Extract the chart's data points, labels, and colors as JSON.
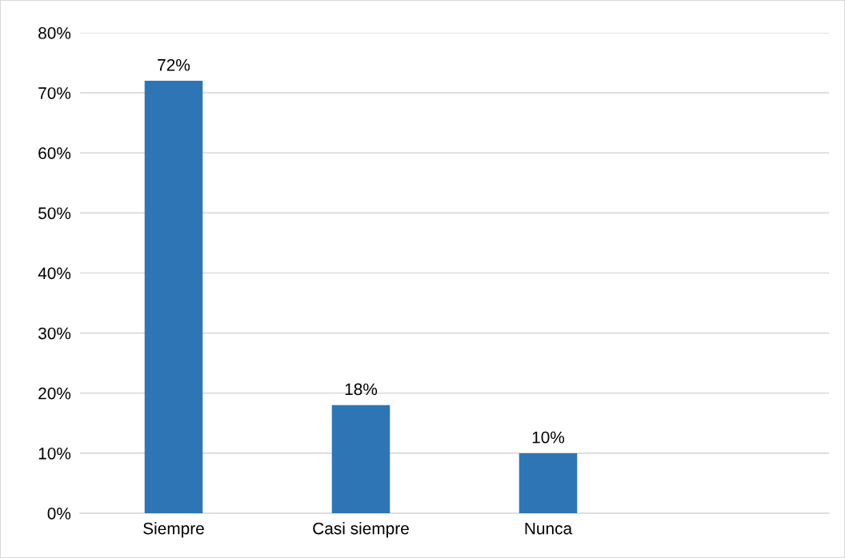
{
  "chart_data": {
    "type": "bar",
    "categories": [
      "Siempre",
      "Casi siempre",
      "Nunca",
      null
    ],
    "values": [
      72,
      18,
      10,
      null
    ],
    "value_labels": [
      "72%",
      "18%",
      "10%",
      null
    ],
    "color": "#2e75b6",
    "ylim": [
      0,
      80
    ],
    "yticks": [
      {
        "value": 0,
        "label": "0%"
      },
      {
        "value": 10,
        "label": "10%"
      },
      {
        "value": 20,
        "label": "20%"
      },
      {
        "value": 30,
        "label": "30%"
      },
      {
        "value": 40,
        "label": "40%"
      },
      {
        "value": 50,
        "label": "50%"
      },
      {
        "value": 60,
        "label": "60%"
      },
      {
        "value": 70,
        "label": "70%"
      },
      {
        "value": 80,
        "label": "80%"
      }
    ],
    "grid": "y"
  }
}
